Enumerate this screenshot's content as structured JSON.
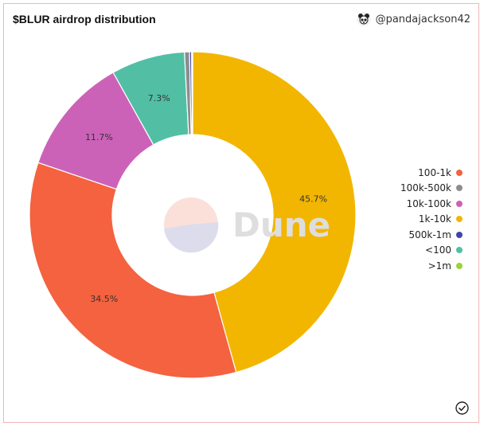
{
  "header": {
    "title": "$BLUR airdrop distribution",
    "author": "@pandajackson42"
  },
  "watermark": "Dune",
  "colors": {
    "100-1k": "#f4623f",
    "100k-500k": "#8d8d8d",
    "10k-100k": "#cc62b8",
    "1k-10k": "#f2b600",
    "500k-1m": "#3f45a8",
    "<100": "#52bfa5",
    ">1m": "#9cd33a"
  },
  "legend": [
    "100-1k",
    "100k-500k",
    "10k-100k",
    "1k-10k",
    "500k-1m",
    "<100",
    ">1m"
  ],
  "chart_data": {
    "type": "pie",
    "title": "$BLUR airdrop distribution",
    "donut": true,
    "slices": [
      {
        "label": "1k-10k",
        "value": 45.7,
        "display": "45.7%"
      },
      {
        "label": "100-1k",
        "value": 34.5,
        "display": "34.5%"
      },
      {
        "label": "10k-100k",
        "value": 11.7,
        "display": "11.7%"
      },
      {
        "label": "<100",
        "value": 7.3,
        "display": "7.3%"
      },
      {
        "label": "100k-500k",
        "value": 0.5,
        "display": ""
      },
      {
        "label": "500k-1m",
        "value": 0.2,
        "display": ""
      },
      {
        "label": ">1m",
        "value": 0.1,
        "display": ""
      }
    ],
    "legend_position": "right"
  },
  "icons": {
    "avatar": "panda-avatar-icon",
    "status": "check-circle-icon"
  }
}
